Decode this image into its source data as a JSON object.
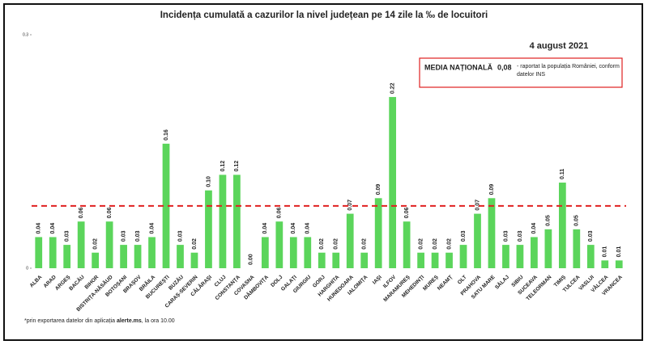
{
  "chart_data": {
    "type": "bar",
    "title": "Incidența cumulată a cazurilor la nivel județean pe 14 zile   la ‰ de locuitori",
    "date": "4 august 2021",
    "annotation": {
      "label": "MEDIA NAȚIONALĂ",
      "value_text": "0,08",
      "text": "- raportat la populația României, conform datelor INS"
    },
    "reference_line": {
      "value": 0.08,
      "color": "#e02020"
    },
    "footnote": {
      "before": "*prin exportarea datelor din aplicația",
      "bold": "alerte.ms",
      "after": ", la ora 10.00"
    },
    "categories": [
      "ALBA",
      "ARAD",
      "ARGEȘ",
      "BACĂU",
      "BIHOR",
      "BISTRIȚA-NĂSĂUD",
      "BOTOȘANI",
      "BRAȘOV",
      "BRĂILA",
      "BUCUREȘTI",
      "BUZĂU",
      "CARAȘ-SEVERIN",
      "CĂLĂRAȘI",
      "CLUJ",
      "CONSTANȚA",
      "COVASNA",
      "DÂMBOVIȚA",
      "DOLJ",
      "GALAȚI",
      "GIURGIU",
      "GORJ",
      "HARGHITA",
      "HUNEDOARA",
      "IALOMIȚA",
      "IAȘI",
      "ILFOV",
      "MARAMUREȘ",
      "MEHEDINȚI",
      "MUREȘ",
      "NEAMȚ",
      "OLT",
      "PRAHOVA",
      "SATU MARE",
      "SĂLAJ",
      "SIBIU",
      "SUCEAVA",
      "TELEORMAN",
      "TIMIȘ",
      "TULCEA",
      "VASLUI",
      "VÂLCEA",
      "VRANCEA"
    ],
    "values": [
      0.04,
      0.04,
      0.03,
      0.06,
      0.02,
      0.06,
      0.03,
      0.03,
      0.04,
      0.16,
      0.03,
      0.02,
      0.1,
      0.12,
      0.12,
      0.0,
      0.04,
      0.06,
      0.04,
      0.04,
      0.02,
      0.02,
      0.07,
      0.02,
      0.09,
      0.22,
      0.06,
      0.02,
      0.02,
      0.02,
      0.03,
      0.07,
      0.09,
      0.03,
      0.03,
      0.04,
      0.05,
      0.11,
      0.05,
      0.03,
      0.01,
      0.01
    ],
    "value_labels": [
      "0.04",
      "0.04",
      "0.03",
      "0.06",
      "0.02",
      "0.06",
      "0.03",
      "0.03",
      "0.04",
      "0.16",
      "0.03",
      "0.02",
      "0.10",
      "0.12",
      "0.12",
      "0.00",
      "0.04",
      "0.06",
      "0.04",
      "0.04",
      "0.02",
      "0.02",
      "0.07",
      "0.02",
      "0.09",
      "0.22",
      "0.06",
      "0.02",
      "0.02",
      "0.02",
      "0.03",
      "0.07",
      "0.09",
      "0.03",
      "0.03",
      "0.04",
      "0.05",
      "0.11",
      "0.05",
      "0.03",
      "0.01",
      "0.01"
    ],
    "color": "#5bd55b",
    "ylim": [
      0,
      0.3
    ],
    "yticks": [
      0,
      0.3
    ]
  }
}
